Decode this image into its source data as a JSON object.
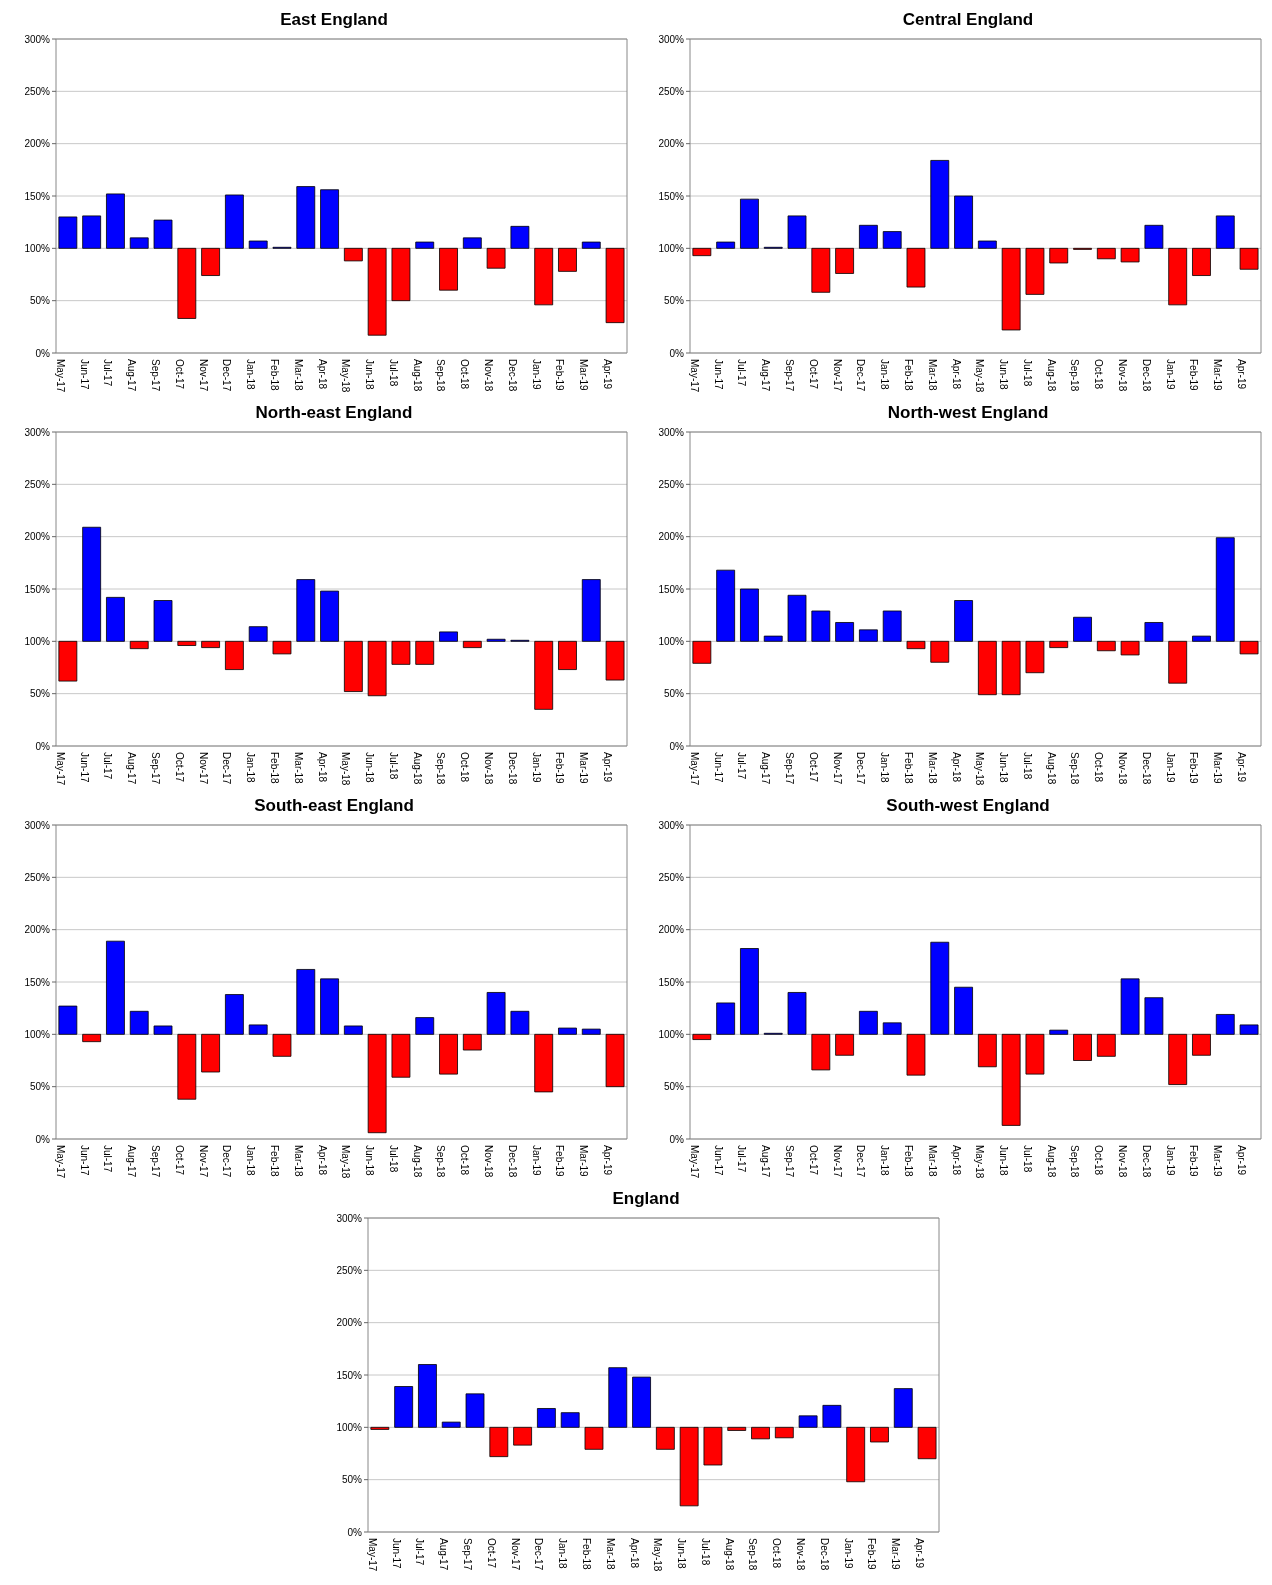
{
  "chart_data": [
    {
      "type": "bar",
      "title": "East England",
      "categories": [
        "May-17",
        "Jun-17",
        "Jul-17",
        "Aug-17",
        "Sep-17",
        "Oct-17",
        "Nov-17",
        "Dec-17",
        "Jan-18",
        "Feb-18",
        "Mar-18",
        "Apr-18",
        "May-18",
        "Jun-18",
        "Jul-18",
        "Aug-18",
        "Sep-18",
        "Oct-18",
        "Nov-18",
        "Dec-18",
        "Jan-19",
        "Feb-19",
        "Mar-19",
        "Apr-19"
      ],
      "base": [
        100,
        100,
        100,
        100,
        100,
        100,
        100,
        100,
        100,
        100,
        100,
        100,
        100,
        100,
        100,
        100,
        100,
        100,
        100,
        100,
        100,
        100,
        100,
        100
      ],
      "values": [
        30,
        31,
        52,
        10,
        27,
        -67,
        -26,
        51,
        7,
        1,
        59,
        56,
        -12,
        -83,
        -50,
        6,
        -40,
        10,
        -19,
        21,
        -54,
        -22,
        6,
        -71
      ],
      "colors": [
        "#0000ff",
        "#0000ff",
        "#0000ff",
        "#0000ff",
        "#0000ff",
        "#ff0000",
        "#ff0000",
        "#0000ff",
        "#0000ff",
        "#0000ff",
        "#0000ff",
        "#0000ff",
        "#ff0000",
        "#ff0000",
        "#ff0000",
        "#0000ff",
        "#ff0000",
        "#0000ff",
        "#ff0000",
        "#0000ff",
        "#ff0000",
        "#ff0000",
        "#0000ff",
        "#ff0000"
      ],
      "ylim": [
        0,
        300
      ],
      "yticks": [
        {
          "value": 0,
          "label": "0%"
        },
        {
          "value": 50,
          "label": "50%"
        },
        {
          "value": 100,
          "label": "100%"
        },
        {
          "value": 150,
          "label": "150%"
        },
        {
          "value": 200,
          "label": "200%"
        },
        {
          "value": 250,
          "label": "250%"
        },
        {
          "value": 300,
          "label": "300%"
        }
      ],
      "grid": "y"
    },
    {
      "type": "bar",
      "title": "Central England",
      "categories": [
        "May-17",
        "Jun-17",
        "Jul-17",
        "Aug-17",
        "Sep-17",
        "Oct-17",
        "Nov-17",
        "Dec-17",
        "Jan-18",
        "Feb-18",
        "Mar-18",
        "Apr-18",
        "May-18",
        "Jun-18",
        "Jul-18",
        "Aug-18",
        "Sep-18",
        "Oct-18",
        "Nov-18",
        "Dec-18",
        "Jan-19",
        "Feb-19",
        "Mar-19",
        "Apr-19"
      ],
      "base": [
        100,
        100,
        100,
        100,
        100,
        100,
        100,
        100,
        100,
        100,
        100,
        100,
        100,
        100,
        100,
        100,
        100,
        100,
        100,
        100,
        100,
        100,
        100,
        100
      ],
      "values": [
        -7,
        6,
        47,
        1,
        31,
        -42,
        -24,
        22,
        16,
        -37,
        84,
        50,
        7,
        -78,
        -44,
        -14,
        -1,
        -10,
        -13,
        22,
        -54,
        -26,
        31,
        -20
      ],
      "colors": [
        "#ff0000",
        "#0000ff",
        "#0000ff",
        "#0000ff",
        "#0000ff",
        "#ff0000",
        "#ff0000",
        "#0000ff",
        "#0000ff",
        "#ff0000",
        "#0000ff",
        "#0000ff",
        "#0000ff",
        "#ff0000",
        "#ff0000",
        "#ff0000",
        "#ff0000",
        "#ff0000",
        "#ff0000",
        "#0000ff",
        "#ff0000",
        "#ff0000",
        "#0000ff",
        "#ff0000"
      ],
      "ylim": [
        0,
        300
      ],
      "yticks": [
        {
          "value": 0,
          "label": "0%"
        },
        {
          "value": 50,
          "label": "50%"
        },
        {
          "value": 100,
          "label": "100%"
        },
        {
          "value": 150,
          "label": "150%"
        },
        {
          "value": 200,
          "label": "200%"
        },
        {
          "value": 250,
          "label": "250%"
        },
        {
          "value": 300,
          "label": "300%"
        }
      ],
      "grid": "y"
    },
    {
      "type": "bar",
      "title": "North-east England",
      "categories": [
        "May-17",
        "Jun-17",
        "Jul-17",
        "Aug-17",
        "Sep-17",
        "Oct-17",
        "Nov-17",
        "Dec-17",
        "Jan-18",
        "Feb-18",
        "Mar-18",
        "Apr-18",
        "May-18",
        "Jun-18",
        "Jul-18",
        "Aug-18",
        "Sep-18",
        "Oct-18",
        "Nov-18",
        "Dec-18",
        "Jan-19",
        "Feb-19",
        "Mar-19",
        "Apr-19"
      ],
      "base": [
        100,
        100,
        100,
        100,
        100,
        100,
        100,
        100,
        100,
        100,
        100,
        100,
        100,
        100,
        100,
        100,
        100,
        100,
        100,
        100,
        100,
        100,
        100,
        100
      ],
      "values": [
        -38,
        109,
        42,
        -7,
        39,
        -4,
        -6,
        -27,
        14,
        -12,
        59,
        48,
        -48,
        -52,
        -22,
        -22,
        9,
        -6,
        2,
        1,
        -65,
        -27,
        59,
        -37
      ],
      "colors": [
        "#ff0000",
        "#0000ff",
        "#0000ff",
        "#ff0000",
        "#0000ff",
        "#ff0000",
        "#ff0000",
        "#ff0000",
        "#0000ff",
        "#ff0000",
        "#0000ff",
        "#0000ff",
        "#ff0000",
        "#ff0000",
        "#ff0000",
        "#ff0000",
        "#0000ff",
        "#ff0000",
        "#0000ff",
        "#0000ff",
        "#ff0000",
        "#ff0000",
        "#0000ff",
        "#ff0000"
      ],
      "ylim": [
        0,
        300
      ],
      "yticks": [
        {
          "value": 0,
          "label": "0%"
        },
        {
          "value": 50,
          "label": "50%"
        },
        {
          "value": 100,
          "label": "100%"
        },
        {
          "value": 150,
          "label": "150%"
        },
        {
          "value": 200,
          "label": "200%"
        },
        {
          "value": 250,
          "label": "250%"
        },
        {
          "value": 300,
          "label": "300%"
        }
      ],
      "grid": "y"
    },
    {
      "type": "bar",
      "title": "North-west England",
      "categories": [
        "May-17",
        "Jun-17",
        "Jul-17",
        "Aug-17",
        "Sep-17",
        "Oct-17",
        "Nov-17",
        "Dec-17",
        "Jan-18",
        "Feb-18",
        "Mar-18",
        "Apr-18",
        "May-18",
        "Jun-18",
        "Jul-18",
        "Aug-18",
        "Sep-18",
        "Oct-18",
        "Nov-18",
        "Dec-18",
        "Jan-19",
        "Feb-19",
        "Mar-19",
        "Apr-19"
      ],
      "base": [
        100,
        100,
        100,
        100,
        100,
        100,
        100,
        100,
        100,
        100,
        100,
        100,
        100,
        100,
        100,
        100,
        100,
        100,
        100,
        100,
        100,
        100,
        100,
        100
      ],
      "values": [
        -21,
        68,
        50,
        5,
        44,
        29,
        18,
        11,
        29,
        -7,
        -20,
        39,
        -51,
        -51,
        -30,
        -6,
        23,
        -9,
        -13,
        18,
        -40,
        5,
        99,
        -12
      ],
      "colors": [
        "#ff0000",
        "#0000ff",
        "#0000ff",
        "#0000ff",
        "#0000ff",
        "#0000ff",
        "#0000ff",
        "#0000ff",
        "#0000ff",
        "#ff0000",
        "#ff0000",
        "#0000ff",
        "#ff0000",
        "#ff0000",
        "#ff0000",
        "#ff0000",
        "#0000ff",
        "#ff0000",
        "#ff0000",
        "#0000ff",
        "#ff0000",
        "#0000ff",
        "#0000ff",
        "#ff0000"
      ],
      "ylim": [
        0,
        300
      ],
      "yticks": [
        {
          "value": 0,
          "label": "0%"
        },
        {
          "value": 50,
          "label": "50%"
        },
        {
          "value": 100,
          "label": "100%"
        },
        {
          "value": 150,
          "label": "150%"
        },
        {
          "value": 200,
          "label": "200%"
        },
        {
          "value": 250,
          "label": "250%"
        },
        {
          "value": 300,
          "label": "300%"
        }
      ],
      "grid": "y"
    },
    {
      "type": "bar",
      "title": "South-east England",
      "categories": [
        "May-17",
        "Jun-17",
        "Jul-17",
        "Aug-17",
        "Sep-17",
        "Oct-17",
        "Nov-17",
        "Dec-17",
        "Jan-18",
        "Feb-18",
        "Mar-18",
        "Apr-18",
        "May-18",
        "Jun-18",
        "Jul-18",
        "Aug-18",
        "Sep-18",
        "Oct-18",
        "Nov-18",
        "Dec-18",
        "Jan-19",
        "Feb-19",
        "Mar-19",
        "Apr-19"
      ],
      "base": [
        100,
        100,
        100,
        100,
        100,
        100,
        100,
        100,
        100,
        100,
        100,
        100,
        100,
        100,
        100,
        100,
        100,
        100,
        100,
        100,
        100,
        100,
        100,
        100
      ],
      "values": [
        27,
        -7,
        89,
        22,
        8,
        -62,
        -36,
        38,
        9,
        -21,
        62,
        53,
        8,
        -94,
        -41,
        16,
        -38,
        -15,
        40,
        22,
        -55,
        6,
        5,
        -50
      ],
      "colors": [
        "#0000ff",
        "#ff0000",
        "#0000ff",
        "#0000ff",
        "#0000ff",
        "#ff0000",
        "#ff0000",
        "#0000ff",
        "#0000ff",
        "#ff0000",
        "#0000ff",
        "#0000ff",
        "#0000ff",
        "#ff0000",
        "#ff0000",
        "#0000ff",
        "#ff0000",
        "#ff0000",
        "#0000ff",
        "#0000ff",
        "#ff0000",
        "#0000ff",
        "#0000ff",
        "#ff0000"
      ],
      "ylim": [
        0,
        300
      ],
      "yticks": [
        {
          "value": 0,
          "label": "0%"
        },
        {
          "value": 50,
          "label": "50%"
        },
        {
          "value": 100,
          "label": "100%"
        },
        {
          "value": 150,
          "label": "150%"
        },
        {
          "value": 200,
          "label": "200%"
        },
        {
          "value": 250,
          "label": "250%"
        },
        {
          "value": 300,
          "label": "300%"
        }
      ],
      "grid": "y"
    },
    {
      "type": "bar",
      "title": "South-west England",
      "categories": [
        "May-17",
        "Jun-17",
        "Jul-17",
        "Aug-17",
        "Sep-17",
        "Oct-17",
        "Nov-17",
        "Dec-17",
        "Jan-18",
        "Feb-18",
        "Mar-18",
        "Apr-18",
        "May-18",
        "Jun-18",
        "Jul-18",
        "Aug-18",
        "Sep-18",
        "Oct-18",
        "Nov-18",
        "Dec-18",
        "Jan-19",
        "Feb-19",
        "Mar-19",
        "Apr-19"
      ],
      "base": [
        100,
        100,
        100,
        100,
        100,
        100,
        100,
        100,
        100,
        100,
        100,
        100,
        100,
        100,
        100,
        100,
        100,
        100,
        100,
        100,
        100,
        100,
        100,
        100
      ],
      "values": [
        -5,
        30,
        82,
        1,
        40,
        -34,
        -20,
        22,
        11,
        -39,
        88,
        45,
        -31,
        -87,
        -38,
        4,
        -25,
        -21,
        53,
        35,
        -48,
        -20,
        19,
        9
      ],
      "colors": [
        "#ff0000",
        "#0000ff",
        "#0000ff",
        "#0000ff",
        "#0000ff",
        "#ff0000",
        "#ff0000",
        "#0000ff",
        "#0000ff",
        "#ff0000",
        "#0000ff",
        "#0000ff",
        "#ff0000",
        "#ff0000",
        "#ff0000",
        "#0000ff",
        "#ff0000",
        "#ff0000",
        "#0000ff",
        "#0000ff",
        "#ff0000",
        "#ff0000",
        "#0000ff",
        "#0000ff"
      ],
      "ylim": [
        0,
        300
      ],
      "yticks": [
        {
          "value": 0,
          "label": "0%"
        },
        {
          "value": 50,
          "label": "50%"
        },
        {
          "value": 100,
          "label": "100%"
        },
        {
          "value": 150,
          "label": "150%"
        },
        {
          "value": 200,
          "label": "200%"
        },
        {
          "value": 250,
          "label": "250%"
        },
        {
          "value": 300,
          "label": "300%"
        }
      ],
      "grid": "y"
    },
    {
      "type": "bar",
      "title": "England",
      "categories": [
        "May-17",
        "Jun-17",
        "Jul-17",
        "Aug-17",
        "Sep-17",
        "Oct-17",
        "Nov-17",
        "Dec-17",
        "Jan-18",
        "Feb-18",
        "Mar-18",
        "Apr-18",
        "May-18",
        "Jun-18",
        "Jul-18",
        "Aug-18",
        "Sep-18",
        "Oct-18",
        "Nov-18",
        "Dec-18",
        "Jan-19",
        "Feb-19",
        "Mar-19",
        "Apr-19"
      ],
      "base": [
        100,
        100,
        100,
        100,
        100,
        100,
        100,
        100,
        100,
        100,
        100,
        100,
        100,
        100,
        100,
        100,
        100,
        100,
        100,
        100,
        100,
        100,
        100,
        100
      ],
      "values": [
        -2,
        39,
        60,
        5,
        32,
        -28,
        -17,
        18,
        14,
        -21,
        57,
        48,
        -21,
        -75,
        -36,
        -3,
        -11,
        -10,
        11,
        21,
        -52,
        -14,
        37,
        -30
      ],
      "colors": [
        "#ff0000",
        "#0000ff",
        "#0000ff",
        "#0000ff",
        "#0000ff",
        "#ff0000",
        "#ff0000",
        "#0000ff",
        "#0000ff",
        "#ff0000",
        "#0000ff",
        "#0000ff",
        "#ff0000",
        "#ff0000",
        "#ff0000",
        "#ff0000",
        "#ff0000",
        "#ff0000",
        "#0000ff",
        "#0000ff",
        "#ff0000",
        "#ff0000",
        "#0000ff",
        "#ff0000"
      ],
      "ylim": [
        0,
        300
      ],
      "yticks": [
        {
          "value": 0,
          "label": "0%"
        },
        {
          "value": 50,
          "label": "50%"
        },
        {
          "value": 100,
          "label": "100%"
        },
        {
          "value": 150,
          "label": "150%"
        },
        {
          "value": 200,
          "label": "200%"
        },
        {
          "value": 250,
          "label": "250%"
        },
        {
          "value": 300,
          "label": "300%"
        }
      ],
      "grid": "y"
    }
  ]
}
